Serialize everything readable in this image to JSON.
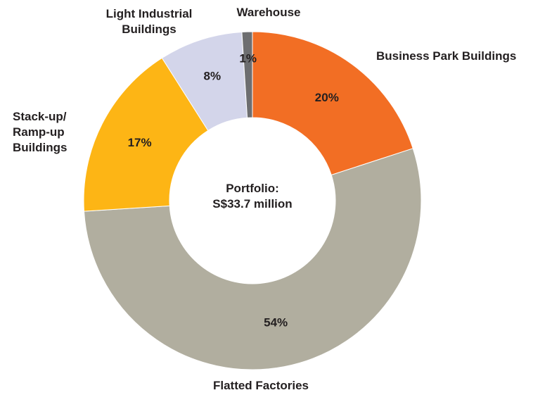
{
  "chart_data": {
    "type": "donut",
    "center_label": "Portfolio:\nS$33.7 million",
    "categories": [
      "Business Park Buildings",
      "Flatted Factories",
      "Stack-up/\nRamp-up\nBuildings",
      "Light Industrial\nBuildings",
      "Warehouse"
    ],
    "values": [
      20,
      54,
      17,
      8,
      1
    ],
    "value_labels": [
      "20%",
      "54%",
      "17%",
      "8%",
      "1%"
    ],
    "colors": [
      "#f26e24",
      "#b1ae9f",
      "#fdb515",
      "#d3d5ea",
      "#6d6e70"
    ]
  }
}
